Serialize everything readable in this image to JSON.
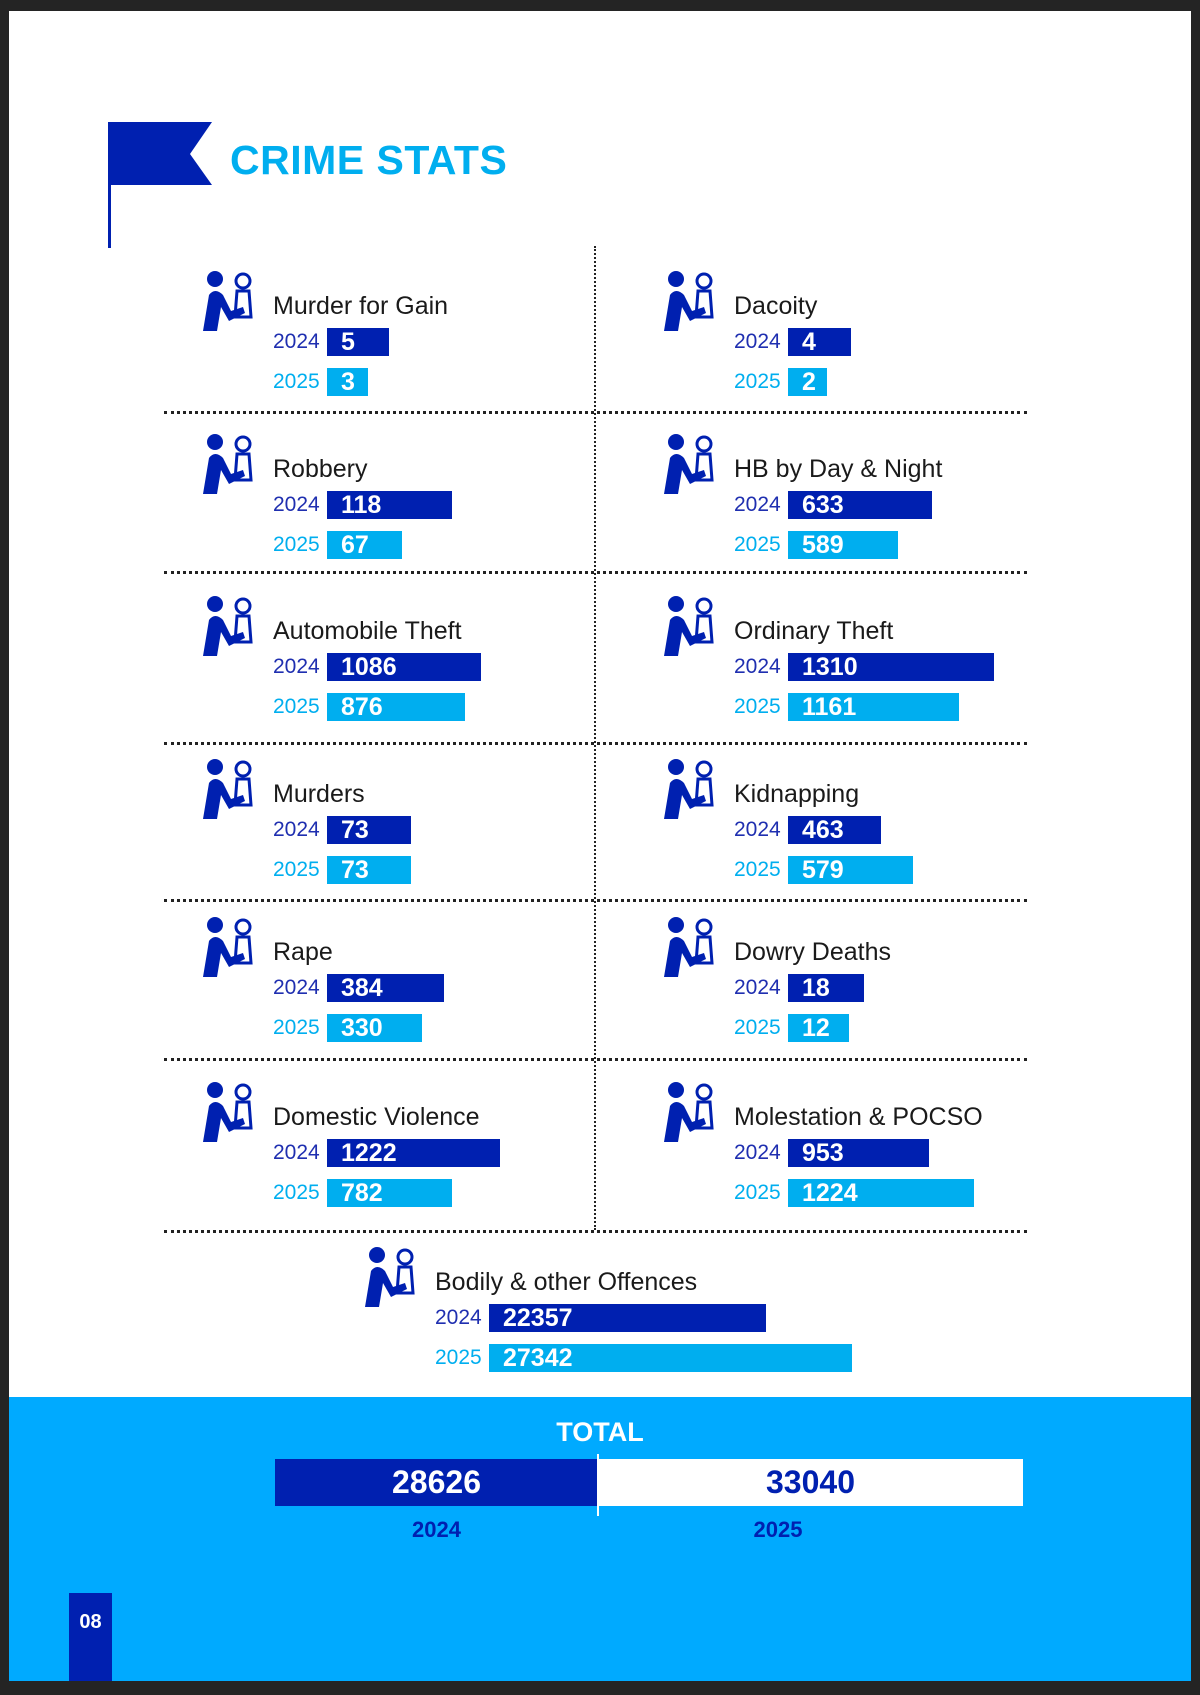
{
  "page_title": "CRIME STATS",
  "colors": {
    "year_2024": "#0020B0",
    "year_2025": "#00AEEF",
    "footer_band": "#00AAFF",
    "title": "#00AEEF"
  },
  "categories": [
    {
      "label": "Murder for Gain",
      "icon": "assault-icon",
      "y2024": "5",
      "y2025": "3"
    },
    {
      "label": "Dacoity",
      "icon": "armed-robbery-icon",
      "y2024": "4",
      "y2025": "2"
    },
    {
      "label": "Robbery",
      "icon": "robber-icon",
      "y2024": "118",
      "y2025": "67"
    },
    {
      "label": "HB by Day & Night",
      "icon": "house-burglary-icon",
      "y2024": "633",
      "y2025": "589"
    },
    {
      "label": "Automobile Theft",
      "icon": "car-theft-icon",
      "y2024": "1086",
      "y2025": "876"
    },
    {
      "label": "Ordinary Theft",
      "icon": "running-thief-icon",
      "y2024": "1310",
      "y2025": "1161"
    },
    {
      "label": "Murders",
      "icon": "stabbing-icon",
      "y2024": "73",
      "y2025": "73"
    },
    {
      "label": "Kidnapping",
      "icon": "hostage-icon",
      "y2024": "463",
      "y2025": "579"
    },
    {
      "label": "Rape",
      "icon": "victim-icon",
      "y2024": "384",
      "y2025": "330"
    },
    {
      "label": "Dowry Deaths",
      "icon": "dowry-icon",
      "y2024": "18",
      "y2025": "12"
    },
    {
      "label": "Domestic Violence",
      "icon": "domestic-violence-icon",
      "y2024": "1222",
      "y2025": "782"
    },
    {
      "label": "Molestation & POCSO",
      "icon": "child-abuse-icon",
      "y2024": "953",
      "y2025": "1224"
    }
  ],
  "bodily": {
    "label": "Bodily & other Offences",
    "icon": "hospital-bed-icon",
    "y2024": "22357",
    "y2025": "27342"
  },
  "year_labels": {
    "a": "2024",
    "b": "2025"
  },
  "total": {
    "title": "TOTAL",
    "y2024": "28626",
    "y2025": "33040",
    "label_2024": "2024",
    "label_2025": "2025"
  },
  "page_number": "08"
}
